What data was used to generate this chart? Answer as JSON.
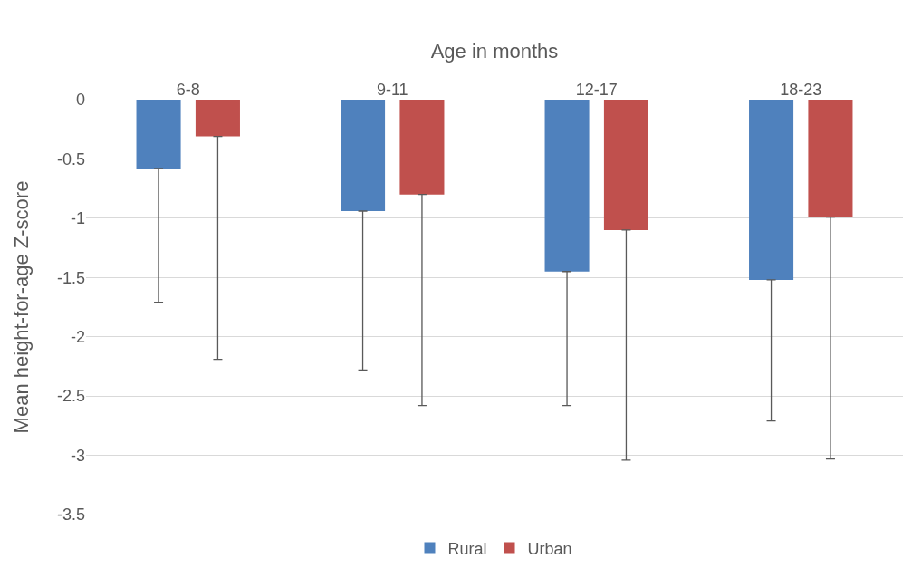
{
  "chart_data": {
    "type": "bar",
    "xlabel": "Age in months",
    "ylabel": "Mean height-for-age Z-score",
    "categories": [
      "6-8",
      "9-11",
      "12-17",
      "18-23"
    ],
    "series": [
      {
        "name": "Rural",
        "color": "#4f81bd",
        "values": [
          -0.58,
          -0.94,
          -1.45,
          -1.52
        ],
        "errors": [
          [
            -1.71,
            -0.58
          ],
          [
            -2.28,
            -0.94
          ],
          [
            -2.58,
            -1.45
          ],
          [
            -2.71,
            -1.52
          ]
        ]
      },
      {
        "name": "Urban",
        "color": "#c0504d",
        "values": [
          -0.31,
          -0.8,
          -1.1,
          -0.99
        ],
        "errors": [
          [
            -2.19,
            -0.31
          ],
          [
            -2.58,
            -0.8
          ],
          [
            -3.04,
            -1.1
          ],
          [
            -3.03,
            -0.99
          ]
        ]
      }
    ],
    "ylim": [
      -3.5,
      0
    ],
    "yticks": [
      0,
      -0.5,
      -1,
      -1.5,
      -2,
      -2.5,
      -3,
      -3.5
    ],
    "grid": "y",
    "legend": "bottom"
  }
}
